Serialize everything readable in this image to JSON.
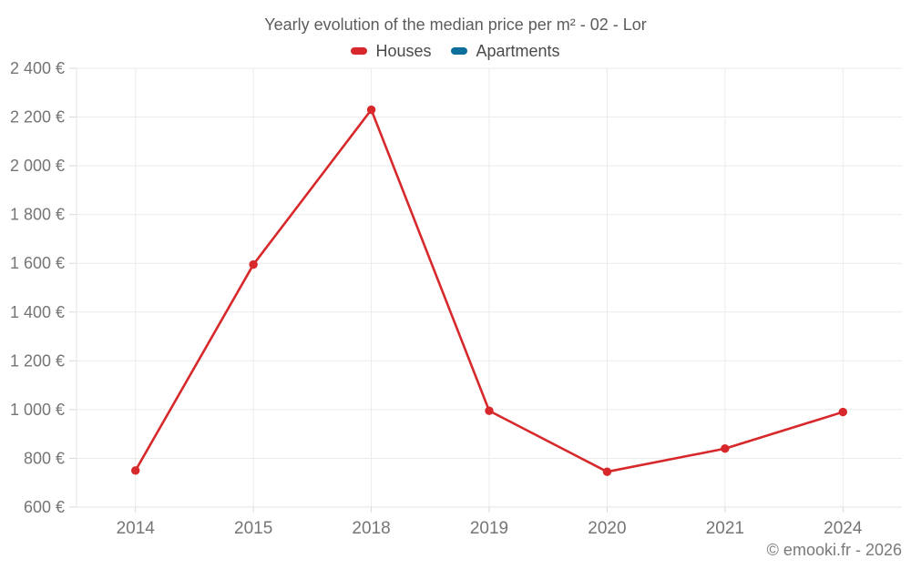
{
  "page": {
    "title": "Yearly evolution of the median price per m² - 02 - Lor",
    "footer": "© emooki.fr - 2026"
  },
  "legend": {
    "items": [
      {
        "label": "Houses",
        "color": "#d7282b"
      },
      {
        "label": "Apartments",
        "color": "#0e6f9f"
      }
    ]
  },
  "chart_data": {
    "type": "line",
    "title": "Yearly evolution of the median price per m² - 02 - Lor",
    "categories": [
      "2014",
      "2015",
      "2018",
      "2019",
      "2020",
      "2021",
      "2024"
    ],
    "series": [
      {
        "name": "Houses",
        "color": "#d7282b",
        "values": [
          750,
          1595,
          2230,
          995,
          745,
          840,
          990
        ]
      },
      {
        "name": "Apartments",
        "color": "#0e6f9f",
        "values": []
      }
    ],
    "xlabel": "",
    "ylabel": "",
    "ylim": [
      600,
      2400
    ],
    "grid": true,
    "legend_position": "top",
    "y_ticks": [
      {
        "value": 600,
        "label": "600 €"
      },
      {
        "value": 800,
        "label": "800 €"
      },
      {
        "value": 1000,
        "label": "1 000 €"
      },
      {
        "value": 1200,
        "label": "1 200 €"
      },
      {
        "value": 1400,
        "label": "1 400 €"
      },
      {
        "value": 1600,
        "label": "1 600 €"
      },
      {
        "value": 1800,
        "label": "1 800 €"
      },
      {
        "value": 2000,
        "label": "2 000 €"
      },
      {
        "value": 2200,
        "label": "2 200 €"
      },
      {
        "value": 2400,
        "label": "2 400 €"
      }
    ]
  },
  "colors": {
    "background": "#ffffff",
    "grid": "#ebebeb",
    "axis": "#e3e3e3",
    "tick": "#d9d9d9",
    "tick_label": "#757575",
    "title_text": "#5c5c5c",
    "legend_text": "#4a4a4a",
    "footer_text": "#7a7a7a"
  }
}
